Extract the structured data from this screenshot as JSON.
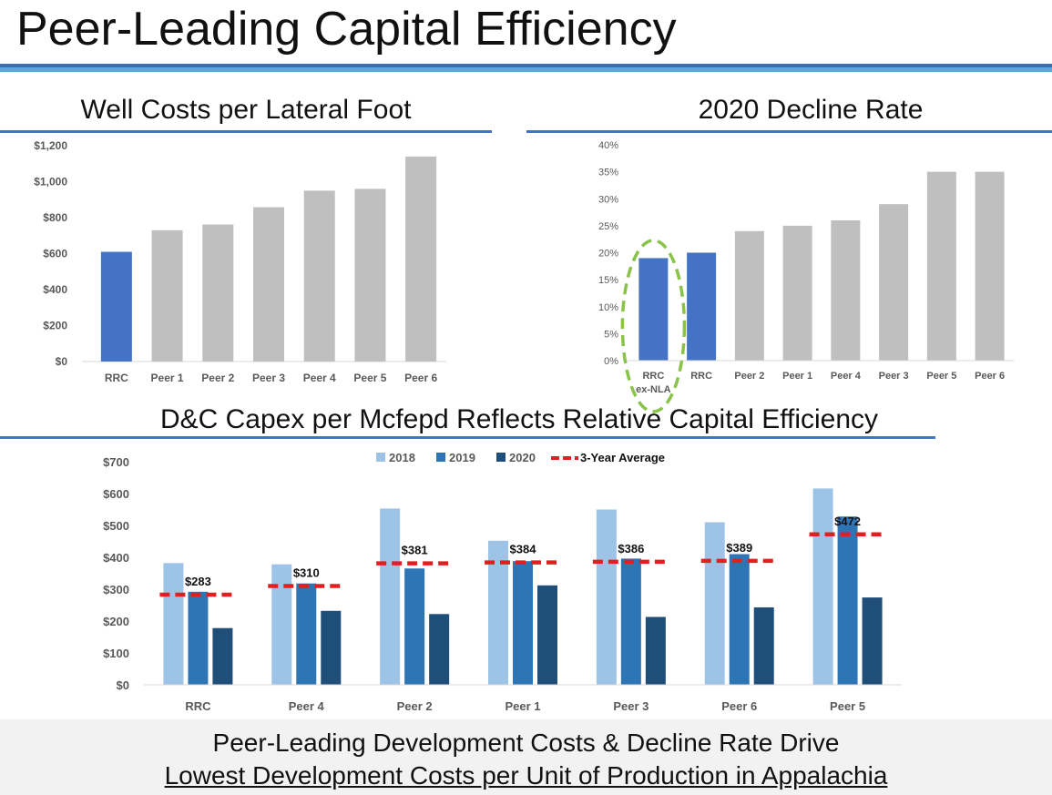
{
  "page": {
    "title": "Peer-Leading Capital Efficiency",
    "footer_line1": "Peer-Leading Development Costs & Decline Rate Drive",
    "footer_line2": "Lowest Development Costs per Unit of Production in Appalachia"
  },
  "colors": {
    "blue": "#4472c4",
    "gray": "#bfbfbf",
    "s2018": "#9dc3e6",
    "s2019": "#2e75b6",
    "s2020": "#1f4e79",
    "average": "#e02020",
    "highlight": "#8ac34a"
  },
  "chart_data": [
    {
      "id": "well_costs",
      "type": "bar",
      "title": "Well Costs per Lateral Foot",
      "categories": [
        "RRC",
        "Peer 1",
        "Peer 2",
        "Peer 3",
        "Peer 4",
        "Peer 5",
        "Peer 6"
      ],
      "values": [
        610,
        730,
        762,
        858,
        950,
        960,
        1140
      ],
      "highlight_count": 1,
      "ylim": [
        0,
        1200
      ],
      "yticks": [
        "$0",
        "$200",
        "$400",
        "$600",
        "$800",
        "$1,000",
        "$1,200"
      ]
    },
    {
      "id": "decline_rate",
      "type": "bar",
      "title": "2020 Decline Rate",
      "categories": [
        "RRC ex-NLA",
        "RRC",
        "Peer 2",
        "Peer 1",
        "Peer 4",
        "Peer 3",
        "Peer 5",
        "Peer 6"
      ],
      "values": [
        19,
        20,
        24,
        25,
        26,
        29,
        35,
        35
      ],
      "highlight_count": 2,
      "ylim": [
        0,
        40
      ],
      "yticks": [
        "0%",
        "5%",
        "10%",
        "15%",
        "20%",
        "25%",
        "30%",
        "35%",
        "40%"
      ]
    },
    {
      "id": "capex",
      "type": "bar",
      "title": "D&C Capex per Mcfepd Reflects Relative Capital Efficiency",
      "categories": [
        "RRC",
        "Peer 4",
        "Peer 2",
        "Peer 1",
        "Peer 3",
        "Peer 6",
        "Peer 5"
      ],
      "series": [
        {
          "name": "2018",
          "values": [
            382,
            378,
            553,
            452,
            550,
            510,
            616
          ]
        },
        {
          "name": "2019",
          "values": [
            292,
            318,
            365,
            388,
            396,
            410,
            528
          ]
        },
        {
          "name": "2020",
          "values": [
            178,
            232,
            222,
            312,
            213,
            243,
            274
          ]
        }
      ],
      "average": {
        "name": "3-Year Average",
        "values": [
          283,
          310,
          381,
          384,
          386,
          389,
          472
        ],
        "labels": [
          "$283",
          "$310",
          "$381",
          "$384",
          "$386",
          "$389",
          "$472"
        ]
      },
      "ylim": [
        0,
        700
      ],
      "yticks": [
        "$0",
        "$100",
        "$200",
        "$300",
        "$400",
        "$500",
        "$600",
        "$700"
      ]
    }
  ]
}
